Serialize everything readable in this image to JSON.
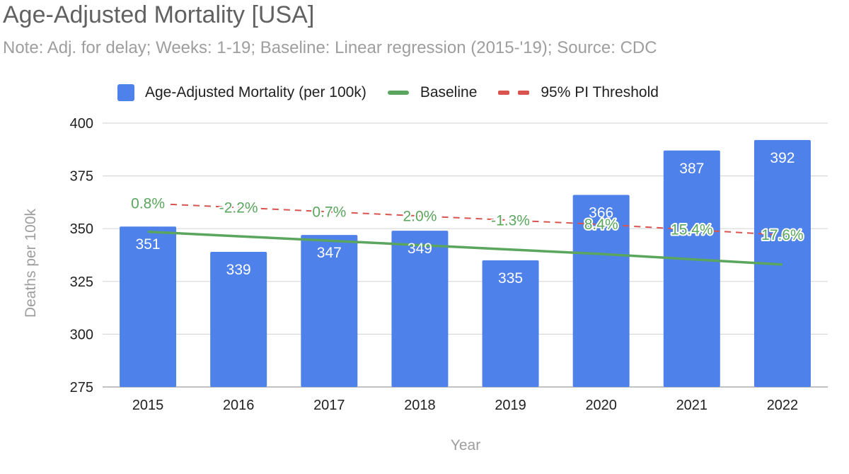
{
  "chart_data": {
    "type": "bar",
    "title": "Age-Adjusted Mortality [USA]",
    "subtitle": "Note: Adj. for delay; Weeks: 1-19; Baseline: Linear regression (2015-'19); Source: CDC",
    "xlabel": "Year",
    "ylabel": "Deaths per 100k",
    "ylim": [
      275,
      400
    ],
    "yticks": [
      275,
      300,
      325,
      350,
      375,
      400
    ],
    "grid": true,
    "legend_position": "top",
    "categories": [
      "2015",
      "2016",
      "2017",
      "2018",
      "2019",
      "2020",
      "2021",
      "2022"
    ],
    "series": [
      {
        "name": "Age-Adjusted Mortality (per 100k)",
        "type": "bar",
        "color": "#4f81ea",
        "values": [
          351,
          339,
          347,
          349,
          335,
          366,
          387,
          392
        ],
        "data_labels": [
          "351",
          "339",
          "347",
          "349",
          "335",
          "366",
          "387",
          "392"
        ]
      },
      {
        "name": "Baseline",
        "type": "line",
        "color": "#5aa65e",
        "values": [
          348.5,
          346.4,
          344.3,
          342.2,
          340.1,
          338.0,
          335.5,
          333.0
        ],
        "data_labels": [
          "0.8%",
          "-2.2%",
          "0.7%",
          "2.0%",
          "-1.3%",
          "8.4%",
          "15.4%",
          "17.6%"
        ]
      },
      {
        "name": "95% PI Threshold",
        "type": "line",
        "style": "dashed",
        "color": "#d9534f",
        "values": [
          362.0,
          360.0,
          358.0,
          356.0,
          354.0,
          352.0,
          349.5,
          347.0
        ]
      }
    ]
  }
}
